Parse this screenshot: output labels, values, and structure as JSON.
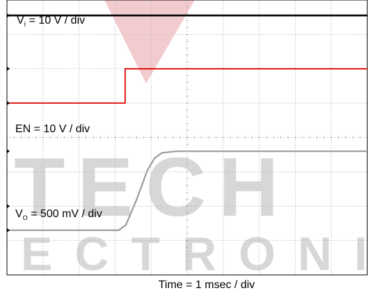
{
  "chart_data": {
    "type": "line",
    "x_divisions": 10,
    "y_divisions": 8,
    "x_units_per_div_ms": 1,
    "xlabel": "Time = 1 msec / div",
    "grid": true,
    "series": [
      {
        "name": "V_I",
        "label_main": "V",
        "label_sub": "I",
        "label_tail": " = 10 V / div",
        "color": "#000000",
        "points": [
          [
            0,
            7.55
          ],
          [
            10,
            7.55
          ]
        ]
      },
      {
        "name": "EN",
        "label_main": "EN",
        "label_sub": "",
        "label_tail": " = 10 V / div",
        "color": "#e00000",
        "points": [
          [
            0,
            5.0
          ],
          [
            3.28,
            5.0
          ],
          [
            3.28,
            6.0
          ],
          [
            10,
            6.0
          ]
        ]
      },
      {
        "name": "V_O",
        "label_main": "V",
        "label_sub": "O",
        "label_tail": " = 500 mV / div",
        "color": "#9a9a9a",
        "points": [
          [
            0,
            1.3
          ],
          [
            3.1,
            1.3
          ],
          [
            3.3,
            1.45
          ],
          [
            3.6,
            2.2
          ],
          [
            3.9,
            3.05
          ],
          [
            4.1,
            3.4
          ],
          [
            4.3,
            3.55
          ],
          [
            4.7,
            3.6
          ],
          [
            10,
            3.6
          ]
        ]
      }
    ]
  },
  "watermark": {
    "word1": "TECH",
    "word2": "ECTRONIC",
    "color": "#b8b8b8",
    "accent": "#e8a0a8"
  }
}
